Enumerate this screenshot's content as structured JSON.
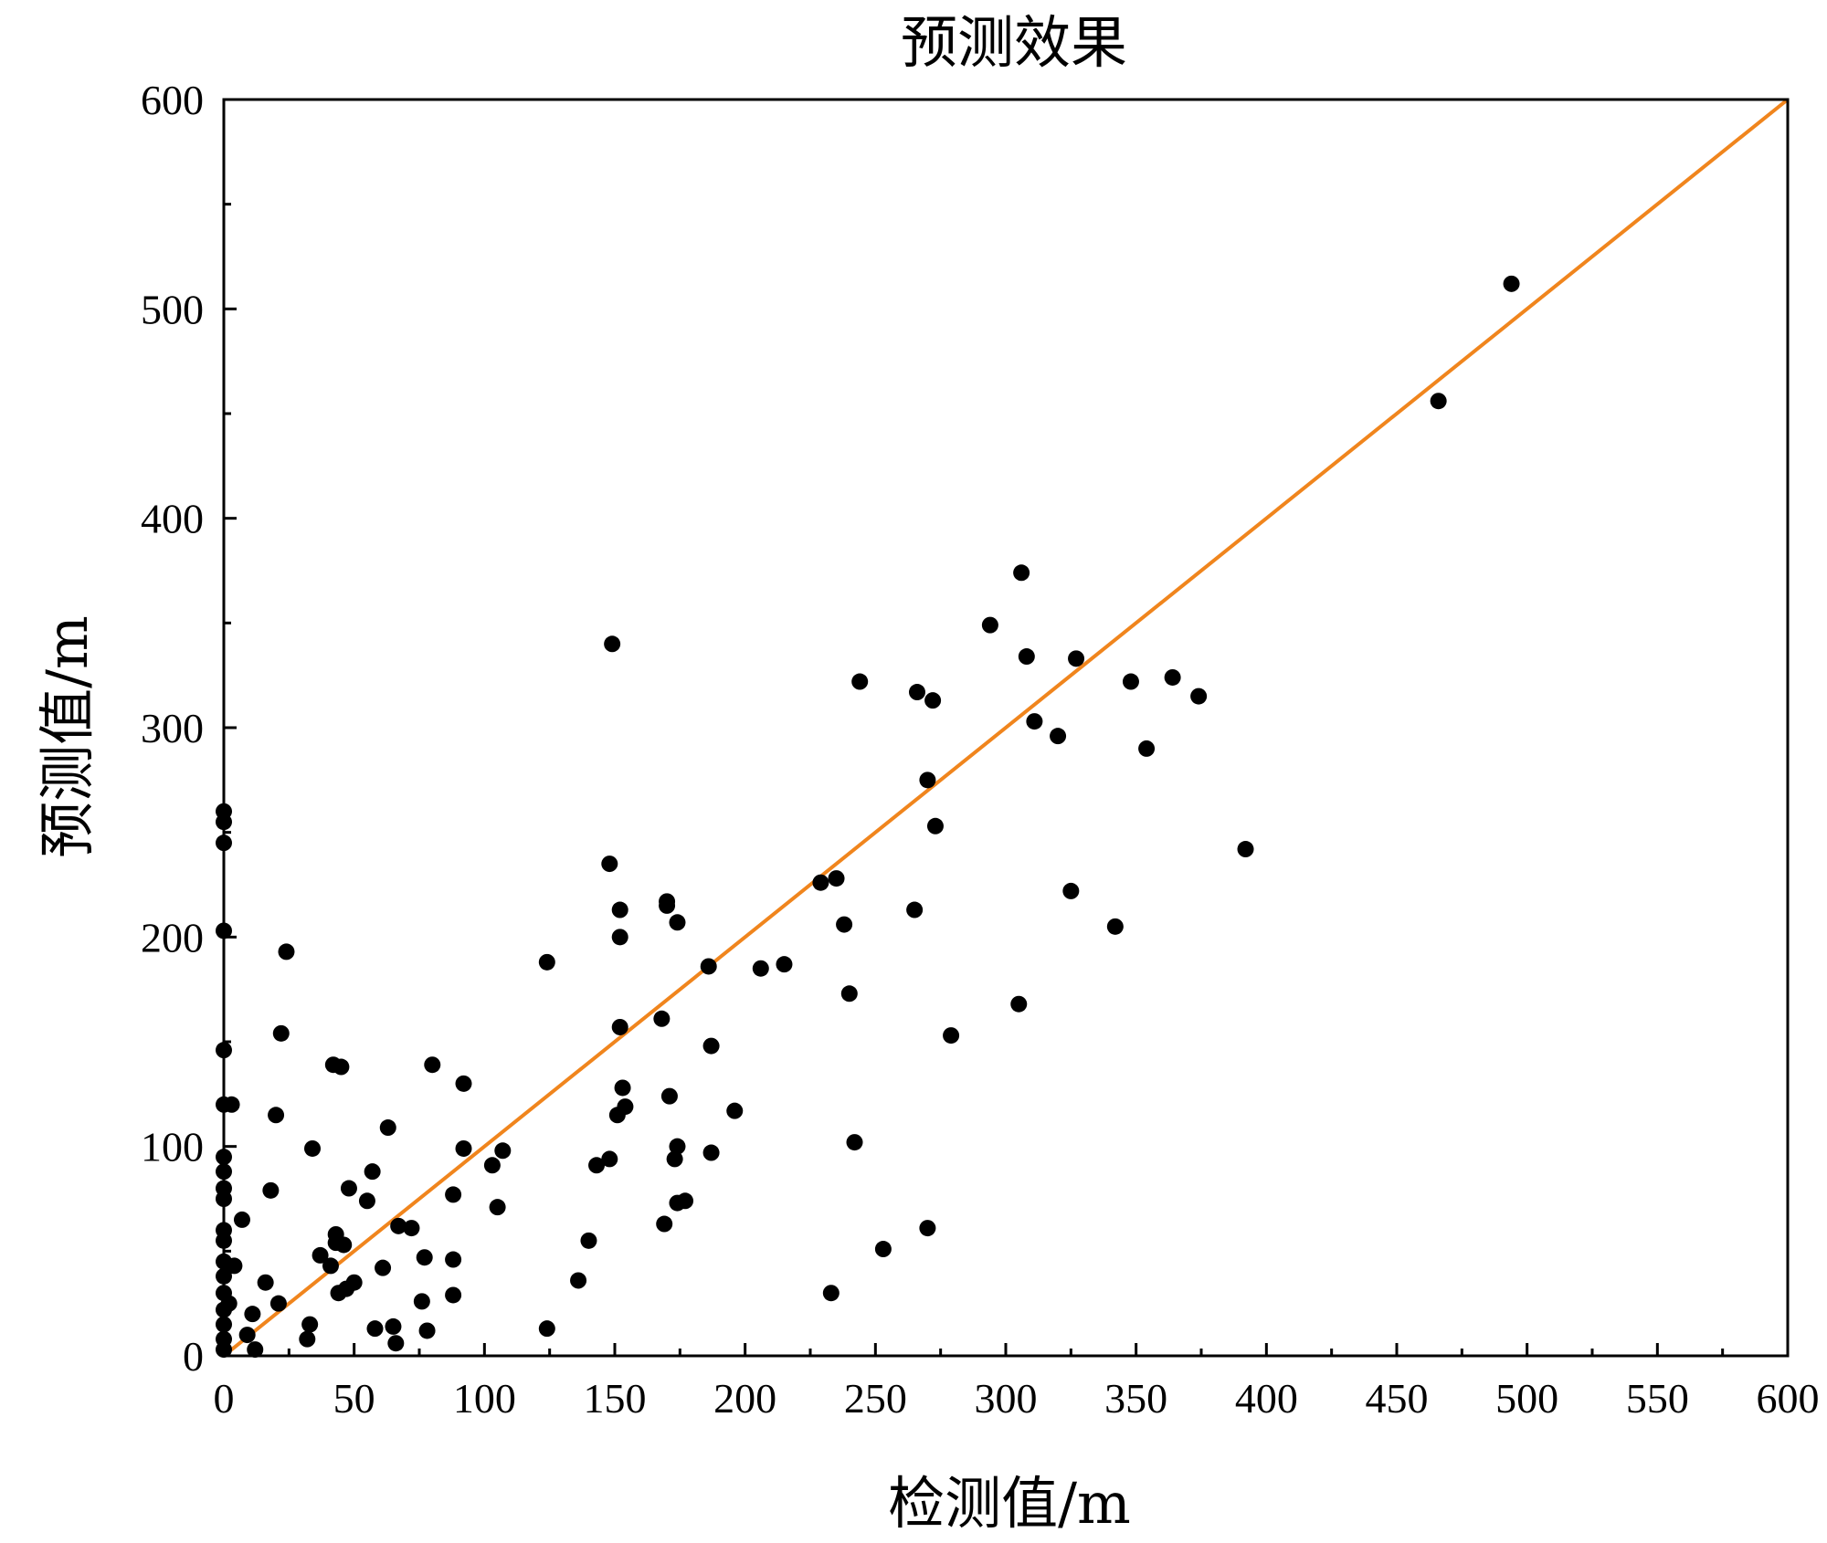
{
  "chart_data": {
    "type": "scatter",
    "title": "预测效果",
    "xlabel": "检测值/m",
    "ylabel": "预测值/m",
    "xlim": [
      0,
      600
    ],
    "ylim": [
      0,
      600
    ],
    "x_ticks": [
      0,
      50,
      100,
      150,
      200,
      250,
      300,
      350,
      400,
      450,
      500,
      550,
      600
    ],
    "y_ticks": [
      0,
      100,
      200,
      300,
      400,
      500,
      600
    ],
    "grid": false,
    "reference_line": {
      "from": [
        0,
        0
      ],
      "to": [
        600,
        600
      ],
      "color": "#f0851d"
    },
    "point_color": "#000000",
    "points": [
      [
        0,
        260
      ],
      [
        0,
        255
      ],
      [
        0,
        245
      ],
      [
        0,
        203
      ],
      [
        0,
        146
      ],
      [
        0,
        120
      ],
      [
        0,
        95
      ],
      [
        0,
        88
      ],
      [
        0,
        80
      ],
      [
        0,
        75
      ],
      [
        0,
        60
      ],
      [
        0,
        55
      ],
      [
        0,
        45
      ],
      [
        0,
        38
      ],
      [
        0,
        30
      ],
      [
        0,
        22
      ],
      [
        0,
        15
      ],
      [
        0,
        8
      ],
      [
        0,
        3
      ],
      [
        2,
        25
      ],
      [
        3,
        120
      ],
      [
        4,
        43
      ],
      [
        7,
        65
      ],
      [
        9,
        10
      ],
      [
        11,
        20
      ],
      [
        12,
        3
      ],
      [
        16,
        35
      ],
      [
        18,
        79
      ],
      [
        20,
        115
      ],
      [
        21,
        25
      ],
      [
        22,
        154
      ],
      [
        24,
        193
      ],
      [
        32,
        8
      ],
      [
        33,
        15
      ],
      [
        34,
        99
      ],
      [
        37,
        48
      ],
      [
        41,
        43
      ],
      [
        42,
        139
      ],
      [
        43,
        58
      ],
      [
        43,
        54
      ],
      [
        44,
        30
      ],
      [
        45,
        138
      ],
      [
        46,
        53
      ],
      [
        47,
        32
      ],
      [
        48,
        80
      ],
      [
        50,
        35
      ],
      [
        55,
        74
      ],
      [
        57,
        88
      ],
      [
        58,
        13
      ],
      [
        61,
        42
      ],
      [
        63,
        109
      ],
      [
        65,
        14
      ],
      [
        66,
        6
      ],
      [
        67,
        62
      ],
      [
        72,
        61
      ],
      [
        76,
        26
      ],
      [
        77,
        47
      ],
      [
        78,
        12
      ],
      [
        80,
        139
      ],
      [
        88,
        77
      ],
      [
        88,
        46
      ],
      [
        88,
        29
      ],
      [
        92,
        130
      ],
      [
        92,
        99
      ],
      [
        103,
        91
      ],
      [
        105,
        71
      ],
      [
        107,
        98
      ],
      [
        124,
        188
      ],
      [
        124,
        13
      ],
      [
        136,
        36
      ],
      [
        140,
        55
      ],
      [
        143,
        91
      ],
      [
        148,
        94
      ],
      [
        148,
        235
      ],
      [
        149,
        340
      ],
      [
        151,
        115
      ],
      [
        152,
        157
      ],
      [
        152,
        200
      ],
      [
        152,
        213
      ],
      [
        153,
        128
      ],
      [
        154,
        119
      ],
      [
        168,
        161
      ],
      [
        169,
        63
      ],
      [
        170,
        215
      ],
      [
        170,
        217
      ],
      [
        171,
        124
      ],
      [
        173,
        94
      ],
      [
        174,
        73
      ],
      [
        174,
        100
      ],
      [
        174,
        207
      ],
      [
        177,
        74
      ],
      [
        186,
        186
      ],
      [
        187,
        148
      ],
      [
        187,
        97
      ],
      [
        196,
        117
      ],
      [
        206,
        185
      ],
      [
        215,
        187
      ],
      [
        229,
        226
      ],
      [
        233,
        30
      ],
      [
        235,
        228
      ],
      [
        238,
        206
      ],
      [
        240,
        173
      ],
      [
        242,
        102
      ],
      [
        244,
        322
      ],
      [
        253,
        51
      ],
      [
        265,
        213
      ],
      [
        266,
        317
      ],
      [
        270,
        275
      ],
      [
        270,
        61
      ],
      [
        272,
        313
      ],
      [
        273,
        253
      ],
      [
        279,
        153
      ],
      [
        294,
        349
      ],
      [
        305,
        168
      ],
      [
        306,
        374
      ],
      [
        308,
        334
      ],
      [
        311,
        303
      ],
      [
        320,
        296
      ],
      [
        325,
        222
      ],
      [
        327,
        333
      ],
      [
        342,
        205
      ],
      [
        348,
        322
      ],
      [
        354,
        290
      ],
      [
        364,
        324
      ],
      [
        374,
        315
      ],
      [
        392,
        242
      ],
      [
        466,
        456
      ],
      [
        494,
        512
      ]
    ]
  }
}
